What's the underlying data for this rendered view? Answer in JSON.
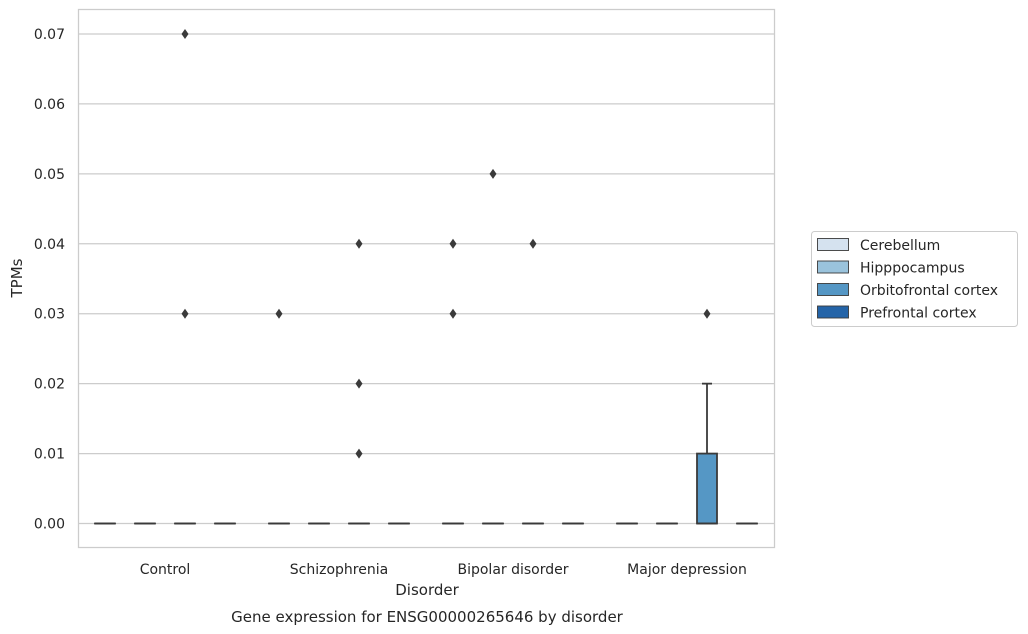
{
  "chart_data": {
    "type": "box",
    "caption": "Gene expression for ENSG00000265646 by disorder",
    "xlabel": "Disorder",
    "ylabel": "TPMs",
    "ylim": [
      -0.0035,
      0.0735
    ],
    "yticks": [
      0.0,
      0.01,
      0.02,
      0.03,
      0.04,
      0.05,
      0.06,
      0.07
    ],
    "ytick_labels": [
      "0.00",
      "0.01",
      "0.02",
      "0.03",
      "0.04",
      "0.05",
      "0.06",
      "0.07"
    ],
    "grid": "horizontal",
    "legend_position": "right",
    "categories": [
      "Control",
      "Schizophrenia",
      "Bipolar disorder",
      "Major depression"
    ],
    "series": [
      {
        "name": "Cerebellum",
        "color": "#d5e2ef"
      },
      {
        "name": "Hipppocampus",
        "color": "#9ac3dc"
      },
      {
        "name": "Orbitofrontal cortex",
        "color": "#5597c5"
      },
      {
        "name": "Prefrontal cortex",
        "color": "#2464a8"
      }
    ],
    "boxes": [
      {
        "category": "Control",
        "series": "Cerebellum",
        "q1": 0,
        "median": 0,
        "q3": 0,
        "whisker_low": 0,
        "whisker_high": 0,
        "outliers": []
      },
      {
        "category": "Control",
        "series": "Hipppocampus",
        "q1": 0,
        "median": 0,
        "q3": 0,
        "whisker_low": 0,
        "whisker_high": 0,
        "outliers": []
      },
      {
        "category": "Control",
        "series": "Orbitofrontal cortex",
        "q1": 0,
        "median": 0,
        "q3": 0,
        "whisker_low": 0,
        "whisker_high": 0,
        "outliers": [
          0.07,
          0.03
        ]
      },
      {
        "category": "Control",
        "series": "Prefrontal cortex",
        "q1": 0,
        "median": 0,
        "q3": 0,
        "whisker_low": 0,
        "whisker_high": 0,
        "outliers": []
      },
      {
        "category": "Schizophrenia",
        "series": "Cerebellum",
        "q1": 0,
        "median": 0,
        "q3": 0,
        "whisker_low": 0,
        "whisker_high": 0,
        "outliers": [
          0.03
        ]
      },
      {
        "category": "Schizophrenia",
        "series": "Hipppocampus",
        "q1": 0,
        "median": 0,
        "q3": 0,
        "whisker_low": 0,
        "whisker_high": 0,
        "outliers": []
      },
      {
        "category": "Schizophrenia",
        "series": "Orbitofrontal cortex",
        "q1": 0,
        "median": 0,
        "q3": 0,
        "whisker_low": 0,
        "whisker_high": 0,
        "outliers": [
          0.04,
          0.02,
          0.01
        ]
      },
      {
        "category": "Schizophrenia",
        "series": "Prefrontal cortex",
        "q1": 0,
        "median": 0,
        "q3": 0,
        "whisker_low": 0,
        "whisker_high": 0,
        "outliers": []
      },
      {
        "category": "Bipolar disorder",
        "series": "Cerebellum",
        "q1": 0,
        "median": 0,
        "q3": 0,
        "whisker_low": 0,
        "whisker_high": 0,
        "outliers": [
          0.04,
          0.03
        ]
      },
      {
        "category": "Bipolar disorder",
        "series": "Hipppocampus",
        "q1": 0,
        "median": 0,
        "q3": 0,
        "whisker_low": 0,
        "whisker_high": 0,
        "outliers": [
          0.05
        ]
      },
      {
        "category": "Bipolar disorder",
        "series": "Orbitofrontal cortex",
        "q1": 0,
        "median": 0,
        "q3": 0,
        "whisker_low": 0,
        "whisker_high": 0,
        "outliers": [
          0.04
        ]
      },
      {
        "category": "Bipolar disorder",
        "series": "Prefrontal cortex",
        "q1": 0,
        "median": 0,
        "q3": 0,
        "whisker_low": 0,
        "whisker_high": 0,
        "outliers": []
      },
      {
        "category": "Major depression",
        "series": "Cerebellum",
        "q1": 0,
        "median": 0,
        "q3": 0,
        "whisker_low": 0,
        "whisker_high": 0,
        "outliers": []
      },
      {
        "category": "Major depression",
        "series": "Hipppocampus",
        "q1": 0,
        "median": 0,
        "q3": 0,
        "whisker_low": 0,
        "whisker_high": 0,
        "outliers": []
      },
      {
        "category": "Major depression",
        "series": "Orbitofrontal cortex",
        "q1": 0,
        "median": 0,
        "q3": 0.01,
        "whisker_low": 0,
        "whisker_high": 0.02,
        "outliers": [
          0.03
        ]
      },
      {
        "category": "Major depression",
        "series": "Prefrontal cortex",
        "q1": 0,
        "median": 0,
        "q3": 0,
        "whisker_low": 0,
        "whisker_high": 0,
        "outliers": []
      }
    ]
  }
}
